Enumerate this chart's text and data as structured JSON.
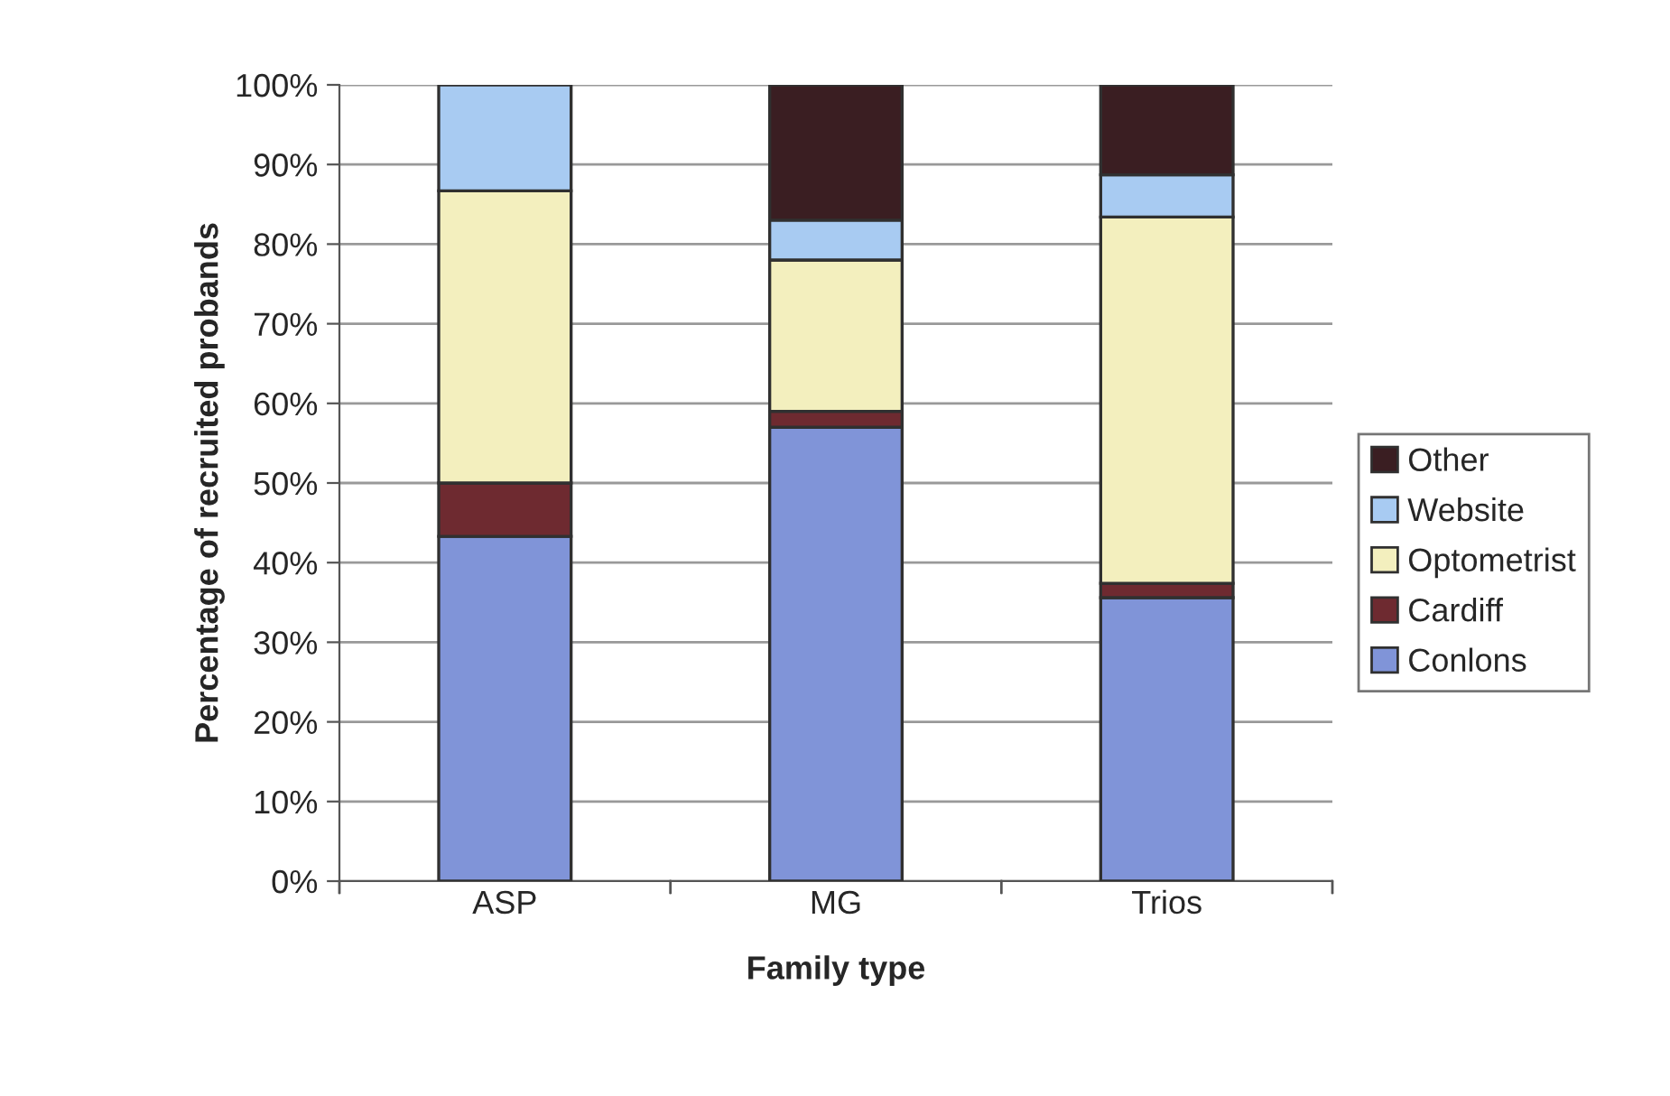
{
  "chart_data": {
    "type": "bar",
    "stacked": true,
    "xlabel": "Family type",
    "ylabel": "Percentage of recruited probands",
    "categories": [
      "ASP",
      "MG",
      "Trios"
    ],
    "series": [
      {
        "name": "Conlons",
        "color": "#8094d8",
        "values": [
          43.3,
          57,
          35.6
        ]
      },
      {
        "name": "Cardiff",
        "color": "#6e2a30",
        "values": [
          6.7,
          2,
          1.8
        ]
      },
      {
        "name": "Optometrist",
        "color": "#f3efbe",
        "values": [
          36.7,
          19,
          46
        ]
      },
      {
        "name": "Website",
        "color": "#a8cbf2",
        "values": [
          13.3,
          5,
          5.3
        ]
      },
      {
        "name": "Other",
        "color": "#3a1e22",
        "values": [
          null,
          17,
          11.3
        ]
      }
    ],
    "ylim": [
      0,
      100
    ],
    "yticks": [
      {
        "value": 0,
        "label": "0%"
      },
      {
        "value": 10,
        "label": "10%"
      },
      {
        "value": 20,
        "label": "20%"
      },
      {
        "value": 30,
        "label": "30%"
      },
      {
        "value": 40,
        "label": "40%"
      },
      {
        "value": 50,
        "label": "50%"
      },
      {
        "value": 60,
        "label": "60%"
      },
      {
        "value": 70,
        "label": "70%"
      },
      {
        "value": 80,
        "label": "80%"
      },
      {
        "value": 90,
        "label": "90%"
      },
      {
        "value": 100,
        "label": "100%"
      }
    ],
    "grid": "y",
    "legend": "right"
  }
}
